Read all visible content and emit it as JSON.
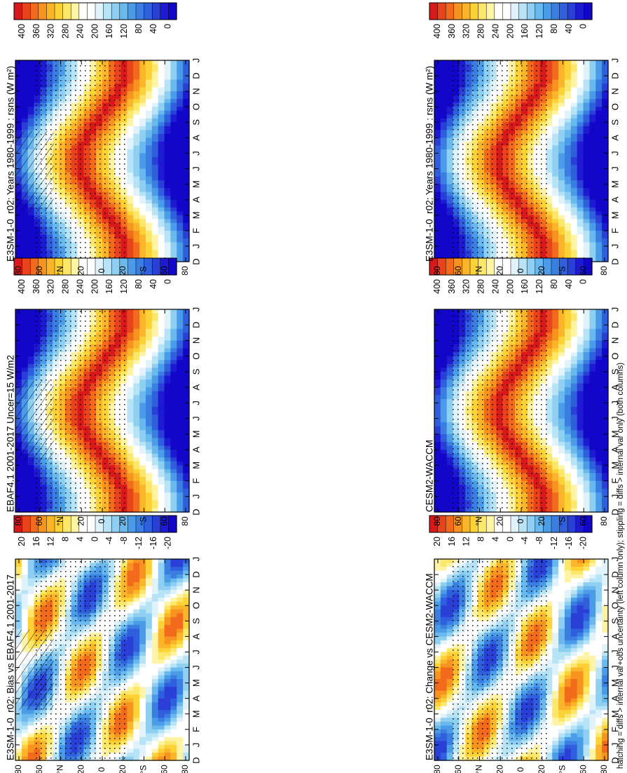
{
  "figure": {
    "caption": "hatching = diffs > internal var+obs uncertainty (left column only); stippling = diffs > internal var only (both columns)"
  },
  "month_ticks": [
    "D",
    "J",
    "F",
    "M",
    "A",
    "M",
    "J",
    "J",
    "A",
    "S",
    "O",
    "N",
    "D",
    "J"
  ],
  "lat_ticks": [
    "80",
    "60",
    "°N",
    "20",
    "0",
    "20",
    "°S",
    "60",
    "80"
  ],
  "colorbars": {
    "absolute": {
      "labels": [
        "400",
        "360",
        "320",
        "280",
        "240",
        "200",
        "160",
        "120",
        "80",
        "40",
        "0"
      ]
    },
    "difference": {
      "labels": [
        "20",
        "16",
        "12",
        "8",
        "4",
        "0",
        "-4",
        "-8",
        "-12",
        "-16",
        "-20"
      ]
    }
  },
  "colors": {
    "absolute_scale": [
      "#d7191c",
      "#e8431c",
      "#f26b1d",
      "#f7931f",
      "#fbb52b",
      "#fdd237",
      "#fbe86a",
      "#fff3a6",
      "#ffffff",
      "#ffffff",
      "#e0f3fb",
      "#b7e3f6",
      "#8fd0f2",
      "#69b8ee",
      "#4b9ce8",
      "#3a7ee2",
      "#2f5fdc",
      "#2a3fd6",
      "#1d1ad2",
      "#1206c8"
    ],
    "difference_scale": [
      "#d7191c",
      "#e8431c",
      "#f26b1d",
      "#f7931f",
      "#fbb52b",
      "#fdd237",
      "#fbe86a",
      "#fff3a6",
      "#ffffff",
      "#ffffff",
      "#e0f3fb",
      "#b7e3f6",
      "#8fd0f2",
      "#69b8ee",
      "#4b9ce8",
      "#3a7ee2",
      "#2f5fdc",
      "#2a3fd6",
      "#1d1ad2",
      "#1206c8"
    ]
  },
  "chart_data": [
    {
      "type": "heatmap",
      "title": "E3SM-1-0_r02: Years 1980-1999 : rsns (W m²)",
      "variable": "rsns",
      "x": [
        "D",
        "J",
        "F",
        "M",
        "A",
        "M",
        "J",
        "J",
        "A",
        "S",
        "O",
        "N",
        "D",
        "J"
      ],
      "y": [
        "80N",
        "60N",
        "40N",
        "20N",
        "0",
        "20S",
        "40S",
        "60S",
        "80S"
      ],
      "zlim": [
        0,
        400
      ],
      "hatching": true,
      "stippling": true
    },
    {
      "type": "heatmap",
      "title": "EBAF4.1 2001-2017 Uncer=15 W/m2",
      "x": [
        "D",
        "J",
        "F",
        "M",
        "A",
        "M",
        "J",
        "J",
        "A",
        "S",
        "O",
        "N",
        "D",
        "J"
      ],
      "y": [
        "80N",
        "60N",
        "40N",
        "20N",
        "0",
        "20S",
        "40S",
        "60S",
        "80S"
      ],
      "zlim": [
        0,
        400
      ],
      "hatching": true,
      "stippling": true
    },
    {
      "type": "heatmap",
      "title": "E3SM-1-0_r02: Bias vs EBAF4.1 2001-2017",
      "x": [
        "D",
        "J",
        "F",
        "M",
        "A",
        "M",
        "J",
        "J",
        "A",
        "S",
        "O",
        "N",
        "D",
        "J"
      ],
      "y": [
        "80N",
        "60N",
        "40N",
        "20N",
        "0",
        "20S",
        "40S",
        "60S",
        "80S"
      ],
      "zlim": [
        -20,
        20
      ],
      "hatching": true,
      "stippling": true
    },
    {
      "type": "heatmap",
      "title": "E3SM-1-0_r02: Years 1980-1999 : rsns (W m²)",
      "variable": "rsns",
      "x": [
        "D",
        "J",
        "F",
        "M",
        "A",
        "M",
        "J",
        "J",
        "A",
        "S",
        "O",
        "N",
        "D",
        "J"
      ],
      "y": [
        "80N",
        "60N",
        "40N",
        "20N",
        "0",
        "20S",
        "40S",
        "60S",
        "80S"
      ],
      "zlim": [
        0,
        400
      ],
      "stippling": true
    },
    {
      "type": "heatmap",
      "title": "CESM2-WACCM",
      "x": [
        "D",
        "J",
        "F",
        "M",
        "A",
        "M",
        "J",
        "J",
        "A",
        "S",
        "O",
        "N",
        "D",
        "J"
      ],
      "y": [
        "80N",
        "60N",
        "40N",
        "20N",
        "0",
        "20S",
        "40S",
        "60S",
        "80S"
      ],
      "zlim": [
        0,
        400
      ],
      "stippling": true
    },
    {
      "type": "heatmap",
      "title": "E3SM-1-0_r02: Change vs CESM2-WACCM",
      "x": [
        "D",
        "J",
        "F",
        "M",
        "A",
        "M",
        "J",
        "J",
        "A",
        "S",
        "O",
        "N",
        "D",
        "J"
      ],
      "y": [
        "80N",
        "60N",
        "40N",
        "20N",
        "0",
        "20S",
        "40S",
        "60S",
        "80S"
      ],
      "zlim": [
        -20,
        20
      ],
      "stippling": true
    }
  ]
}
